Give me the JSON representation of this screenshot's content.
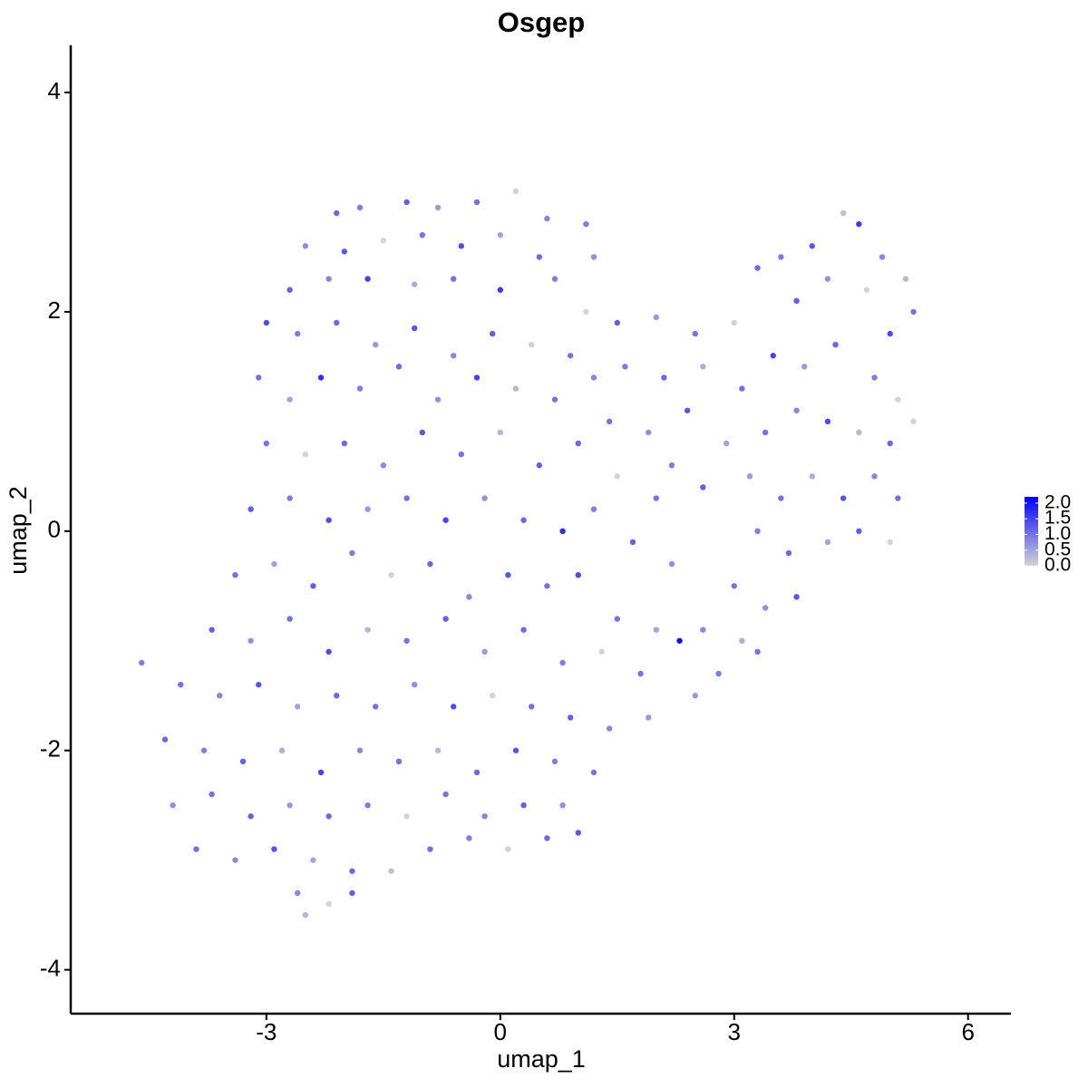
{
  "chart_data": {
    "type": "scatter",
    "title": "Osgep",
    "x_label": "umap_1",
    "y_label": "umap_2",
    "xlim": [
      -5.51,
      6.55
    ],
    "ylim": [
      -4.4,
      4.43
    ],
    "xticks": [
      -3,
      0,
      3,
      6
    ],
    "yticks": [
      -4,
      -2,
      0,
      2,
      4
    ],
    "color_low": "#D3D3D3",
    "color_high": "#0000FF",
    "colorlim": [
      0,
      2.2
    ],
    "legend_ticks": [
      {
        "value": 0,
        "label": "0.0"
      },
      {
        "value": 0.5,
        "label": "0.5"
      },
      {
        "value": 1,
        "label": "1.0"
      },
      {
        "value": 1.5,
        "label": "1.5"
      },
      {
        "value": 2,
        "label": "2.0"
      }
    ],
    "legend_position": "right",
    "x": [
      -2.1,
      -1.8,
      -1.2,
      -0.8,
      -0.3,
      0.2,
      0.6,
      1.1,
      -2.5,
      -2.0,
      -1.5,
      -1.0,
      -0.5,
      0.0,
      0.5,
      1.2,
      -2.7,
      -2.2,
      -1.7,
      -1.1,
      -0.6,
      0.0,
      0.7,
      1.1,
      -3.0,
      -2.6,
      -2.1,
      -1.6,
      -1.1,
      -0.6,
      -0.1,
      0.4,
      0.9,
      -3.1,
      -2.7,
      -2.3,
      -1.8,
      -1.3,
      -0.8,
      -0.3,
      0.2,
      0.7,
      1.2,
      1.5,
      2.0,
      2.5,
      3.0,
      3.3,
      3.6,
      4.0,
      4.4,
      4.6,
      4.9,
      5.2,
      5.3,
      4.2,
      3.8,
      4.7,
      5.0,
      1.6,
      2.1,
      2.6,
      3.1,
      3.5,
      3.9,
      4.3,
      4.8,
      5.1,
      1.4,
      1.9,
      2.4,
      2.9,
      3.4,
      3.8,
      4.2,
      4.6,
      5.0,
      5.3,
      2.2,
      2.6,
      3.2,
      3.6,
      4.0,
      4.4,
      4.8,
      5.1,
      3.3,
      3.7,
      4.2,
      4.6,
      5.0,
      3.0,
      3.4,
      3.8,
      2.6,
      3.1,
      2.3,
      2.8,
      3.3,
      2.5,
      1.0,
      1.5,
      2.0,
      1.2,
      1.7,
      2.2,
      1.0,
      1.5,
      2.0,
      0.5,
      0.0,
      -0.5,
      -1.0,
      -1.5,
      -2.0,
      -2.5,
      -3.0,
      -3.2,
      -2.7,
      -2.2,
      -1.7,
      -1.2,
      -0.7,
      -0.2,
      0.3,
      0.8,
      -3.4,
      -2.9,
      -2.4,
      -1.9,
      -1.4,
      -0.9,
      -0.4,
      0.1,
      0.6,
      -3.7,
      -3.2,
      -2.7,
      -2.2,
      -1.7,
      -1.2,
      -0.7,
      -0.2,
      0.3,
      0.8,
      1.3,
      1.8,
      -4.6,
      -4.1,
      -3.6,
      -3.1,
      -2.6,
      -2.1,
      -1.6,
      -1.1,
      -0.6,
      -0.1,
      0.4,
      0.9,
      1.4,
      1.9,
      -4.3,
      -3.8,
      -3.3,
      -2.8,
      -2.3,
      -1.8,
      -1.3,
      -0.8,
      -0.3,
      0.2,
      0.7,
      1.2,
      -4.2,
      -3.7,
      -3.2,
      -2.7,
      -2.2,
      -1.7,
      -1.2,
      -0.7,
      -0.2,
      0.3,
      0.8,
      -3.9,
      -3.4,
      -2.9,
      -2.4,
      -1.9,
      -1.4,
      -0.9,
      -0.4,
      0.1,
      0.6,
      1.0,
      -2.6,
      -2.2,
      -1.9,
      -2.5
    ],
    "y": [
      2.9,
      2.95,
      3.0,
      2.95,
      3.0,
      3.1,
      2.85,
      2.8,
      2.6,
      2.55,
      2.65,
      2.7,
      2.6,
      2.7,
      2.5,
      2.5,
      2.2,
      2.3,
      2.3,
      2.25,
      2.3,
      2.2,
      2.3,
      2.0,
      1.9,
      1.8,
      1.9,
      1.7,
      1.85,
      1.6,
      1.8,
      1.7,
      1.6,
      1.4,
      1.2,
      1.4,
      1.3,
      1.5,
      1.2,
      1.4,
      1.3,
      1.2,
      1.4,
      1.9,
      1.95,
      1.8,
      1.9,
      2.4,
      2.5,
      2.6,
      2.9,
      2.8,
      2.5,
      2.3,
      2.0,
      2.3,
      2.1,
      2.2,
      1.8,
      1.5,
      1.4,
      1.5,
      1.3,
      1.6,
      1.5,
      1.7,
      1.4,
      1.2,
      1.0,
      0.9,
      1.1,
      0.8,
      0.9,
      1.1,
      1.0,
      0.9,
      0.8,
      1.0,
      0.6,
      0.4,
      0.5,
      0.3,
      0.5,
      0.3,
      0.5,
      0.3,
      0.0,
      -0.2,
      -0.1,
      0.0,
      -0.1,
      -0.5,
      -0.7,
      -0.6,
      -0.9,
      -1.0,
      -1.0,
      -1.3,
      -1.1,
      -1.5,
      0.8,
      0.5,
      0.3,
      0.2,
      -0.1,
      -0.3,
      -0.4,
      -0.8,
      -0.9,
      0.6,
      0.9,
      0.7,
      0.9,
      0.6,
      0.8,
      0.7,
      0.8,
      0.2,
      0.3,
      0.1,
      0.2,
      0.3,
      0.1,
      0.3,
      0.1,
      0.0,
      -0.4,
      -0.3,
      -0.5,
      -0.2,
      -0.4,
      -0.3,
      -0.6,
      -0.4,
      -0.5,
      -0.9,
      -1.0,
      -0.8,
      -1.1,
      -0.9,
      -1.0,
      -0.8,
      -1.1,
      -0.9,
      -1.2,
      -1.1,
      -1.3,
      -1.2,
      -1.4,
      -1.5,
      -1.4,
      -1.6,
      -1.5,
      -1.6,
      -1.4,
      -1.6,
      -1.5,
      -1.6,
      -1.7,
      -1.8,
      -1.7,
      -1.9,
      -2.0,
      -2.1,
      -2.0,
      -2.2,
      -2.0,
      -2.1,
      -2.0,
      -2.2,
      -2.0,
      -2.1,
      -2.2,
      -2.5,
      -2.4,
      -2.6,
      -2.5,
      -2.6,
      -2.5,
      -2.6,
      -2.4,
      -2.6,
      -2.5,
      -2.5,
      -2.9,
      -3.0,
      -2.9,
      -3.0,
      -3.1,
      -3.1,
      -2.9,
      -2.8,
      -2.9,
      -2.8,
      -2.75,
      -3.3,
      -3.4,
      -3.3,
      -3.5
    ],
    "values": [
      1.1,
      0.9,
      1.2,
      0.6,
      1.0,
      0,
      0.8,
      0.9,
      0.7,
      1.3,
      0,
      1.0,
      1.4,
      0.5,
      1.1,
      0.7,
      1.2,
      0.8,
      1.5,
      0.4,
      1.0,
      1.6,
      0.9,
      0,
      1.4,
      0.9,
      1.1,
      0.6,
      1.3,
      0.8,
      1.2,
      0,
      1.0,
      1.0,
      0.5,
      1.7,
      0.9,
      1.1,
      0.7,
      1.5,
      0.3,
      1.0,
      0.8,
      1.2,
      0.6,
      1.0,
      0,
      1.1,
      0.9,
      1.3,
      0.2,
      1.6,
      0.8,
      0.3,
      1.0,
      0.7,
      1.2,
      0,
      1.4,
      0.9,
      1.1,
      0.4,
      1.0,
      1.5,
      0.6,
      1.1,
      0.9,
      0,
      1.0,
      0.7,
      1.3,
      0.5,
      1.0,
      0.8,
      1.4,
      0.3,
      1.1,
      0,
      0.9,
      1.2,
      0.6,
      1.0,
      0.4,
      1.3,
      0.8,
      1.0,
      0.9,
      1.1,
      0.5,
      1.2,
      0,
      1.0,
      0.7,
      1.3,
      0.8,
      0.4,
      2.1,
      0.9,
      1.0,
      0.6,
      1.1,
      0,
      1.0,
      0.9,
      1.2,
      0.7,
      1.4,
      1.0,
      0.5,
      1.2,
      0.3,
      1.0,
      1.3,
      0.8,
      1.1,
      0,
      1.0,
      1.2,
      0.9,
      1.4,
      0.6,
      1.0,
      1.5,
      0.7,
      1.1,
      1.7,
      1.0,
      0.5,
      1.2,
      0.9,
      0,
      1.1,
      0.8,
      1.3,
      1.0,
      1.2,
      0.7,
      1.0,
      1.4,
      0.3,
      1.0,
      1.2,
      0.6,
      1.1,
      0.9,
      0,
      1.0,
      0.9,
      1.0,
      0.8,
      1.3,
      0.5,
      1.1,
      1.0,
      0.7,
      1.4,
      0,
      1.0,
      1.2,
      0.8,
      0.6,
      1.1,
      0.9,
      1.2,
      0.4,
      1.5,
      0.8,
      1.0,
      0.3,
      1.1,
      1.3,
      0.9,
      1.0,
      0.7,
      1.0,
      1.2,
      0.6,
      1.1,
      0.9,
      0,
      1.0,
      0.8,
      1.2,
      0.7,
      1.0,
      0.8,
      1.3,
      0.5,
      1.1,
      0.2,
      1.0,
      0.9,
      0,
      1.1,
      1.3,
      0.8,
      0,
      1.2,
      0.3
    ]
  }
}
